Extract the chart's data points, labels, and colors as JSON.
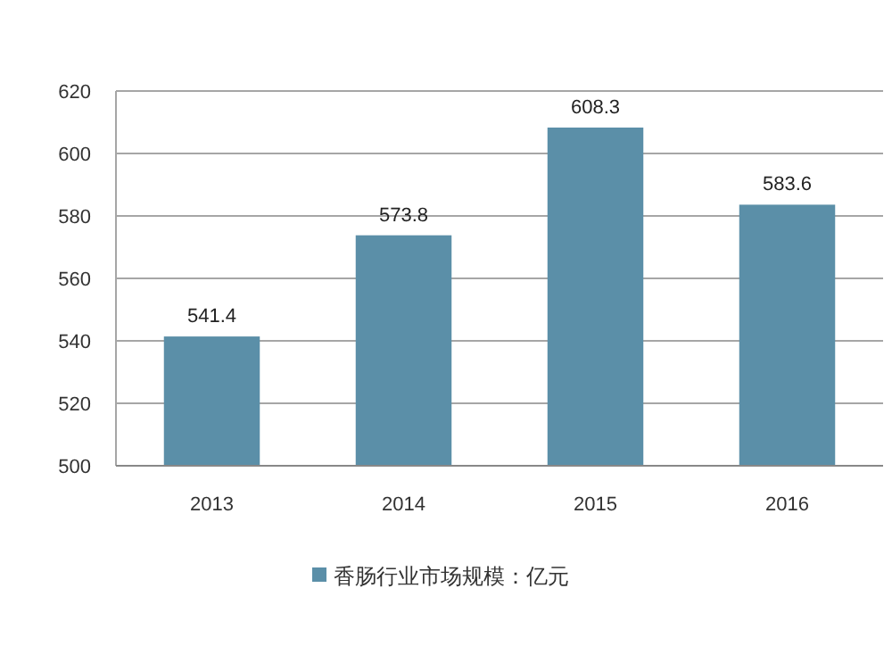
{
  "chart_data": {
    "type": "bar",
    "categories": [
      "2013",
      "2014",
      "2015",
      "2016"
    ],
    "series": [
      {
        "name": "香肠行业市场规模：亿元",
        "color": "#5b8fa8",
        "values": [
          541.4,
          573.8,
          608.3,
          583.6
        ]
      }
    ],
    "ylim": [
      500,
      620
    ],
    "yticks": [
      500,
      520,
      540,
      560,
      580,
      600,
      620
    ],
    "grid": "y",
    "data_labels": true,
    "legend": "bottom"
  }
}
